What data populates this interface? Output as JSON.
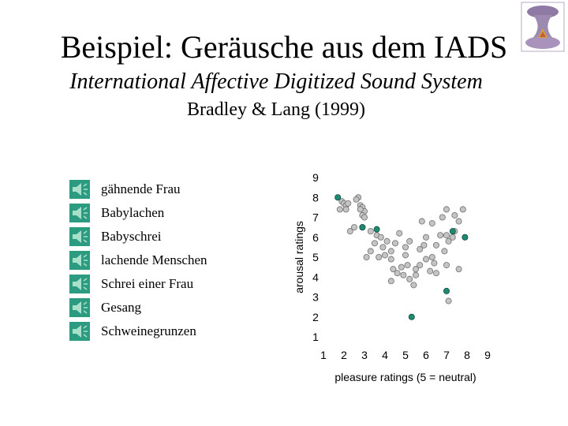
{
  "header": {
    "title": "Beispiel: Geräusche aus dem IADS",
    "subtitle": "International Affective Digitized Sound System",
    "authors": "Bradley & Lang (1999)"
  },
  "sounds": {
    "icon": "speaker-icon",
    "items": [
      {
        "label": "gähnende Frau"
      },
      {
        "label": "Babylachen"
      },
      {
        "label": "Babyschrei"
      },
      {
        "label": "lachende Menschen"
      },
      {
        "label": "Schrei einer Frau"
      },
      {
        "label": "Gesang"
      },
      {
        "label": "Schweinegrunzen"
      }
    ]
  },
  "chart_data": {
    "type": "scatter",
    "xlabel": "pleasure ratings (5 = neutral)",
    "ylabel": "arousal ratings",
    "xlim": [
      1,
      9
    ],
    "ylim": [
      1,
      9
    ],
    "xticks": [
      "1",
      "2",
      "3",
      "4",
      "5",
      "6",
      "7",
      "8",
      "9"
    ],
    "yticks": [
      "1",
      "2",
      "3",
      "4",
      "5",
      "6",
      "7",
      "8",
      "9"
    ],
    "grid": false,
    "colors": {
      "gray": "#c4c4c4",
      "green": "#1f8a72"
    },
    "series": [
      {
        "color": "gray",
        "points": [
          [
            1.9,
            7.8
          ],
          [
            2.0,
            7.7
          ],
          [
            2.1,
            7.6
          ],
          [
            2.2,
            7.7
          ],
          [
            1.8,
            7.4
          ],
          [
            2.1,
            7.4
          ],
          [
            2.7,
            8.0
          ],
          [
            2.6,
            7.9
          ],
          [
            2.8,
            7.6
          ],
          [
            2.9,
            7.5
          ],
          [
            3.0,
            7.3
          ],
          [
            2.8,
            7.4
          ],
          [
            2.9,
            7.1
          ],
          [
            3.0,
            7.0
          ],
          [
            2.5,
            6.5
          ],
          [
            2.3,
            6.3
          ],
          [
            2.9,
            6.5
          ],
          [
            3.3,
            6.3
          ],
          [
            3.6,
            6.1
          ],
          [
            3.8,
            6.0
          ],
          [
            3.5,
            5.7
          ],
          [
            3.9,
            5.5
          ],
          [
            4.1,
            5.8
          ],
          [
            4.5,
            5.7
          ],
          [
            4.3,
            5.3
          ],
          [
            4.0,
            5.1
          ],
          [
            3.7,
            5.0
          ],
          [
            3.3,
            5.3
          ],
          [
            4.3,
            4.9
          ],
          [
            4.4,
            4.4
          ],
          [
            4.6,
            4.2
          ],
          [
            4.8,
            4.5
          ],
          [
            5.0,
            5.5
          ],
          [
            5.2,
            5.8
          ],
          [
            5.0,
            5.1
          ],
          [
            5.1,
            4.6
          ],
          [
            4.9,
            4.1
          ],
          [
            5.2,
            3.9
          ],
          [
            5.5,
            4.4
          ],
          [
            5.7,
            4.6
          ],
          [
            5.7,
            5.4
          ],
          [
            5.9,
            5.6
          ],
          [
            6.0,
            6.0
          ],
          [
            5.8,
            6.8
          ],
          [
            6.3,
            6.7
          ],
          [
            6.0,
            4.9
          ],
          [
            6.3,
            5.0
          ],
          [
            6.4,
            4.7
          ],
          [
            6.5,
            4.2
          ],
          [
            6.2,
            4.3
          ],
          [
            6.5,
            5.6
          ],
          [
            6.9,
            5.3
          ],
          [
            7.0,
            6.1
          ],
          [
            6.8,
            7.0
          ],
          [
            7.0,
            7.4
          ],
          [
            7.1,
            5.8
          ],
          [
            7.3,
            6.0
          ],
          [
            7.0,
            4.6
          ],
          [
            7.4,
            6.3
          ],
          [
            7.6,
            6.8
          ],
          [
            7.4,
            7.1
          ],
          [
            7.8,
            7.4
          ],
          [
            7.6,
            4.4
          ],
          [
            5.5,
            4.1
          ],
          [
            5.4,
            3.6
          ],
          [
            4.3,
            3.8
          ],
          [
            3.1,
            5.0
          ],
          [
            7.1,
            2.8
          ],
          [
            4.7,
            6.2
          ],
          [
            6.7,
            6.1
          ]
        ]
      },
      {
        "color": "green",
        "points": [
          [
            1.7,
            8.0
          ],
          [
            3.6,
            6.4
          ],
          [
            2.9,
            6.5
          ],
          [
            7.3,
            6.3
          ],
          [
            7.9,
            6.0
          ],
          [
            7.0,
            3.3
          ],
          [
            5.3,
            2.0
          ]
        ]
      }
    ]
  }
}
